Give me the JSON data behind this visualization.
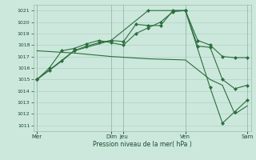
{
  "bg_color": "#cce8dc",
  "grid_color": "#aaccbb",
  "line_color": "#2d6e3e",
  "marker_color": "#2d6e3e",
  "xlabel": "Pression niveau de la mer( hPa )",
  "ylim": [
    1010.5,
    1021.5
  ],
  "yticks": [
    1011,
    1012,
    1013,
    1014,
    1015,
    1016,
    1017,
    1018,
    1019,
    1020,
    1021
  ],
  "xtick_labels": [
    "Mer",
    "Dim",
    "Jeu",
    "Ven",
    "Sam"
  ],
  "xtick_positions": [
    0,
    6,
    7,
    12,
    17
  ],
  "series1": {
    "x": [
      0,
      1,
      2,
      3,
      4,
      5,
      6,
      7,
      8,
      9,
      10,
      11,
      12,
      13,
      14,
      15,
      16,
      17
    ],
    "y": [
      1015.0,
      1015.8,
      1016.6,
      1017.5,
      1017.9,
      1018.2,
      1018.4,
      1018.3,
      1019.8,
      1019.7,
      1019.7,
      1021.0,
      1021.0,
      1018.4,
      1018.0,
      1017.0,
      1016.9,
      1016.9
    ]
  },
  "series2": {
    "x": [
      0,
      1,
      2,
      3,
      4,
      5,
      6,
      7,
      8,
      9,
      10,
      11,
      12,
      13,
      14,
      15,
      16,
      17
    ],
    "y": [
      1015.0,
      1016.0,
      1017.5,
      1017.7,
      1018.1,
      1018.4,
      1018.2,
      1018.0,
      1019.0,
      1019.5,
      1020.0,
      1020.9,
      1021.0,
      1017.9,
      1017.8,
      1015.0,
      1014.2,
      1014.5
    ]
  },
  "series3": {
    "x": [
      0,
      3,
      6,
      9,
      12,
      14,
      15,
      16,
      17
    ],
    "y": [
      1015.0,
      1017.5,
      1018.4,
      1021.0,
      1021.0,
      1014.3,
      1011.2,
      1012.2,
      1013.2
    ]
  },
  "series4": {
    "x": [
      0,
      3,
      6,
      9,
      12,
      14,
      15,
      16,
      17
    ],
    "y": [
      1017.5,
      1017.3,
      1017.0,
      1016.8,
      1016.7,
      1015.0,
      1014.5,
      1012.0,
      1012.7
    ]
  },
  "vlines_x": [
    0,
    6,
    7,
    12,
    17
  ],
  "vline_color": "#99bbaa"
}
